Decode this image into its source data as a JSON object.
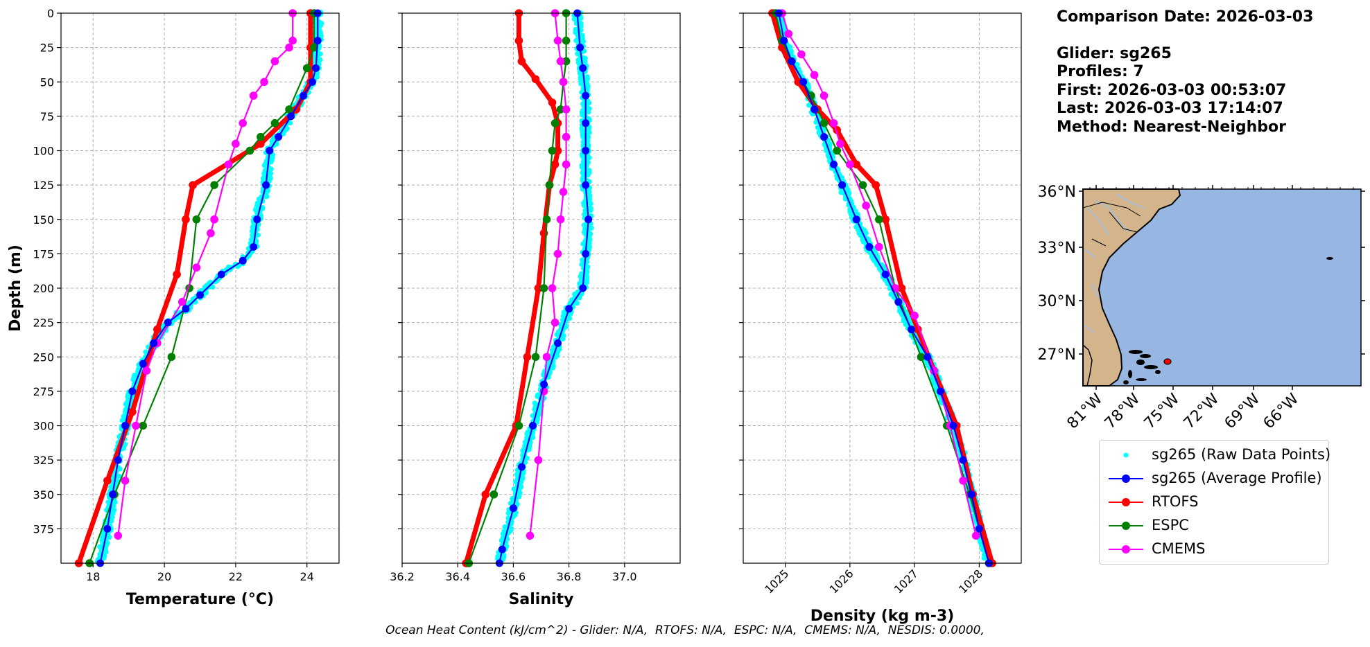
{
  "info": {
    "comparison_date": "Comparison Date: 2026-03-03",
    "glider": "Glider: sg265",
    "profiles": "Profiles: 7",
    "first": "First: 2026-03-03 00:53:07",
    "last": "Last: 2026-03-03 17:14:07",
    "method": "Method: Nearest-Neighbor"
  },
  "footer": "Ocean Heat Content (kJ/cm^2) - Glider: N/A,  RTOFS: N/A,  ESPC: N/A,  CMEMS: N/A,  NESDIS: 0.0000,",
  "legend": [
    {
      "label": "sg265 (Raw Data Points)",
      "color": "#00ffff",
      "kind": "dot"
    },
    {
      "label": "sg265 (Average Profile)",
      "color": "#0000ff",
      "kind": "line"
    },
    {
      "label": "RTOFS",
      "color": "#ff0000",
      "kind": "line"
    },
    {
      "label": "ESPC",
      "color": "#008000",
      "kind": "line"
    },
    {
      "label": "CMEMS",
      "color": "#ff00ff",
      "kind": "line"
    }
  ],
  "map": {
    "lat_ticks": [
      "36°N",
      "33°N",
      "30°N",
      "27°N"
    ],
    "lon_ticks": [
      "81°W",
      "78°W",
      "75°W",
      "72°W",
      "69°W",
      "66°W"
    ],
    "ocean_color": "#97b6e1",
    "land_color": "#d4b48a",
    "marker_color": "#ff0000"
  },
  "chart_data": [
    {
      "type": "line",
      "xlabel": "Temperature (°C)",
      "ylabel": "Depth (m)",
      "xlim": [
        17.1,
        24.9
      ],
      "ylim": [
        400,
        0
      ],
      "xticks": [
        18,
        20,
        22,
        24
      ],
      "yticks": [
        0,
        25,
        50,
        75,
        100,
        125,
        150,
        175,
        200,
        225,
        250,
        275,
        300,
        325,
        350,
        375
      ],
      "grid": true,
      "series": [
        {
          "name": "sg265 (Average Profile)",
          "color": "#0000ff",
          "points": [
            [
              24.3,
              0
            ],
            [
              24.3,
              20
            ],
            [
              24.25,
              40
            ],
            [
              24.15,
              50
            ],
            [
              23.9,
              60
            ],
            [
              23.55,
              75
            ],
            [
              23.2,
              90
            ],
            [
              22.95,
              100
            ],
            [
              22.85,
              125
            ],
            [
              22.6,
              150
            ],
            [
              22.5,
              170
            ],
            [
              22.2,
              180
            ],
            [
              21.6,
              190
            ],
            [
              21.0,
              205
            ],
            [
              20.6,
              215
            ],
            [
              20.1,
              225
            ],
            [
              19.7,
              240
            ],
            [
              19.4,
              255
            ],
            [
              19.1,
              275
            ],
            [
              18.9,
              300
            ],
            [
              18.7,
              325
            ],
            [
              18.55,
              350
            ],
            [
              18.4,
              375
            ],
            [
              18.2,
              400
            ]
          ]
        },
        {
          "name": "RTOFS",
          "color": "#ff0000",
          "points": [
            [
              24.1,
              0
            ],
            [
              24.1,
              25
            ],
            [
              24.1,
              50
            ],
            [
              23.7,
              70
            ],
            [
              22.7,
              95
            ],
            [
              20.8,
              125
            ],
            [
              20.6,
              150
            ],
            [
              20.35,
              190
            ],
            [
              19.8,
              230
            ],
            [
              19.1,
              290
            ],
            [
              18.4,
              340
            ],
            [
              17.6,
              400
            ]
          ]
        },
        {
          "name": "ESPC",
          "color": "#008000",
          "points": [
            [
              24.2,
              0
            ],
            [
              24.2,
              25
            ],
            [
              24.0,
              40
            ],
            [
              23.5,
              70
            ],
            [
              23.1,
              80
            ],
            [
              22.7,
              90
            ],
            [
              22.4,
              100
            ],
            [
              21.4,
              125
            ],
            [
              20.9,
              150
            ],
            [
              20.7,
              200
            ],
            [
              20.2,
              250
            ],
            [
              19.4,
              300
            ],
            [
              18.6,
              350
            ],
            [
              17.9,
              400
            ]
          ]
        },
        {
          "name": "CMEMS",
          "color": "#ff00ff",
          "points": [
            [
              23.6,
              0
            ],
            [
              23.6,
              20
            ],
            [
              23.5,
              25
            ],
            [
              23.1,
              35
            ],
            [
              22.8,
              50
            ],
            [
              22.5,
              60
            ],
            [
              22.2,
              80
            ],
            [
              22.0,
              95
            ],
            [
              21.8,
              110
            ],
            [
              21.4,
              150
            ],
            [
              21.3,
              160
            ],
            [
              20.9,
              185
            ],
            [
              20.5,
              210
            ],
            [
              19.8,
              240
            ],
            [
              19.5,
              260
            ],
            [
              19.2,
              300
            ],
            [
              18.9,
              340
            ],
            [
              18.7,
              380
            ]
          ]
        }
      ]
    },
    {
      "type": "line",
      "xlabel": "Salinity",
      "xlim": [
        36.2,
        37.2
      ],
      "ylim": [
        400,
        0
      ],
      "xticks": [
        36.2,
        36.4,
        36.6,
        36.8,
        37.0
      ],
      "grid": true,
      "series": [
        {
          "name": "sg265 (Average Profile)",
          "color": "#0000ff",
          "points": [
            [
              36.83,
              0
            ],
            [
              36.84,
              25
            ],
            [
              36.85,
              40
            ],
            [
              36.86,
              60
            ],
            [
              36.86,
              80
            ],
            [
              36.86,
              100
            ],
            [
              36.86,
              125
            ],
            [
              36.87,
              150
            ],
            [
              36.86,
              175
            ],
            [
              36.85,
              200
            ],
            [
              36.8,
              215
            ],
            [
              36.76,
              240
            ],
            [
              36.71,
              270
            ],
            [
              36.67,
              300
            ],
            [
              36.63,
              330
            ],
            [
              36.6,
              360
            ],
            [
              36.56,
              390
            ],
            [
              36.55,
              400
            ]
          ]
        },
        {
          "name": "RTOFS",
          "color": "#ff0000",
          "points": [
            [
              36.62,
              0
            ],
            [
              36.62,
              20
            ],
            [
              36.63,
              35
            ],
            [
              36.68,
              48
            ],
            [
              36.74,
              65
            ],
            [
              36.76,
              80
            ],
            [
              36.76,
              100
            ],
            [
              36.75,
              110
            ],
            [
              36.73,
              125
            ],
            [
              36.71,
              160
            ],
            [
              36.69,
              200
            ],
            [
              36.65,
              250
            ],
            [
              36.61,
              300
            ],
            [
              36.5,
              350
            ],
            [
              36.43,
              400
            ]
          ]
        },
        {
          "name": "ESPC",
          "color": "#008000",
          "points": [
            [
              36.79,
              0
            ],
            [
              36.79,
              20
            ],
            [
              36.79,
              35
            ],
            [
              36.78,
              50
            ],
            [
              36.77,
              70
            ],
            [
              36.75,
              80
            ],
            [
              36.74,
              100
            ],
            [
              36.73,
              125
            ],
            [
              36.72,
              150
            ],
            [
              36.71,
              200
            ],
            [
              36.68,
              250
            ],
            [
              36.62,
              300
            ],
            [
              36.53,
              350
            ],
            [
              36.44,
              400
            ]
          ]
        },
        {
          "name": "CMEMS",
          "color": "#ff00ff",
          "points": [
            [
              36.75,
              0
            ],
            [
              36.76,
              20
            ],
            [
              36.77,
              35
            ],
            [
              36.78,
              50
            ],
            [
              36.79,
              70
            ],
            [
              36.79,
              90
            ],
            [
              36.79,
              110
            ],
            [
              36.78,
              130
            ],
            [
              36.77,
              150
            ],
            [
              36.76,
              175
            ],
            [
              36.74,
              200
            ],
            [
              36.75,
              225
            ],
            [
              36.72,
              250
            ],
            [
              36.71,
              275
            ],
            [
              36.69,
              325
            ],
            [
              36.66,
              380
            ]
          ]
        }
      ]
    },
    {
      "type": "line",
      "xlabel": "Density (kg m-3)",
      "xlim": [
        1024.35,
        1028.65
      ],
      "ylim": [
        400,
        0
      ],
      "xticks": [
        1025,
        1026,
        1027,
        1028
      ],
      "grid": true,
      "series": [
        {
          "name": "sg265 (Average Profile)",
          "color": "#0000ff",
          "points": [
            [
              1024.9,
              0
            ],
            [
              1024.98,
              20
            ],
            [
              1025.1,
              35
            ],
            [
              1025.28,
              50
            ],
            [
              1025.45,
              70
            ],
            [
              1025.6,
              90
            ],
            [
              1025.75,
              110
            ],
            [
              1025.88,
              125
            ],
            [
              1026.1,
              150
            ],
            [
              1026.3,
              170
            ],
            [
              1026.55,
              190
            ],
            [
              1026.75,
              210
            ],
            [
              1026.95,
              230
            ],
            [
              1027.2,
              250
            ],
            [
              1027.4,
              275
            ],
            [
              1027.6,
              300
            ],
            [
              1027.75,
              325
            ],
            [
              1027.88,
              350
            ],
            [
              1028.0,
              375
            ],
            [
              1028.15,
              400
            ]
          ]
        },
        {
          "name": "RTOFS",
          "color": "#ff0000",
          "points": [
            [
              1024.8,
              0
            ],
            [
              1024.95,
              25
            ],
            [
              1025.2,
              50
            ],
            [
              1025.5,
              70
            ],
            [
              1025.8,
              85
            ],
            [
              1026.1,
              110
            ],
            [
              1026.4,
              125
            ],
            [
              1026.55,
              150
            ],
            [
              1026.8,
              200
            ],
            [
              1027.05,
              230
            ],
            [
              1027.3,
              260
            ],
            [
              1027.65,
              300
            ],
            [
              1027.9,
              350
            ],
            [
              1028.2,
              400
            ]
          ]
        },
        {
          "name": "ESPC",
          "color": "#008000",
          "points": [
            [
              1024.85,
              0
            ],
            [
              1024.95,
              20
            ],
            [
              1025.1,
              35
            ],
            [
              1025.4,
              60
            ],
            [
              1025.6,
              80
            ],
            [
              1025.8,
              100
            ],
            [
              1026.2,
              125
            ],
            [
              1026.45,
              150
            ],
            [
              1026.7,
              200
            ],
            [
              1027.1,
              250
            ],
            [
              1027.5,
              300
            ],
            [
              1027.85,
              350
            ],
            [
              1028.15,
              400
            ]
          ]
        },
        {
          "name": "CMEMS",
          "color": "#ff00ff",
          "points": [
            [
              1024.95,
              0
            ],
            [
              1025.05,
              15
            ],
            [
              1025.25,
              30
            ],
            [
              1025.45,
              45
            ],
            [
              1025.6,
              60
            ],
            [
              1025.75,
              80
            ],
            [
              1025.85,
              95
            ],
            [
              1026.0,
              110
            ],
            [
              1026.25,
              140
            ],
            [
              1026.45,
              170
            ],
            [
              1026.7,
              200
            ],
            [
              1027.0,
              220
            ],
            [
              1027.3,
              260
            ],
            [
              1027.55,
              300
            ],
            [
              1027.75,
              340
            ],
            [
              1027.95,
              380
            ]
          ]
        }
      ]
    }
  ]
}
